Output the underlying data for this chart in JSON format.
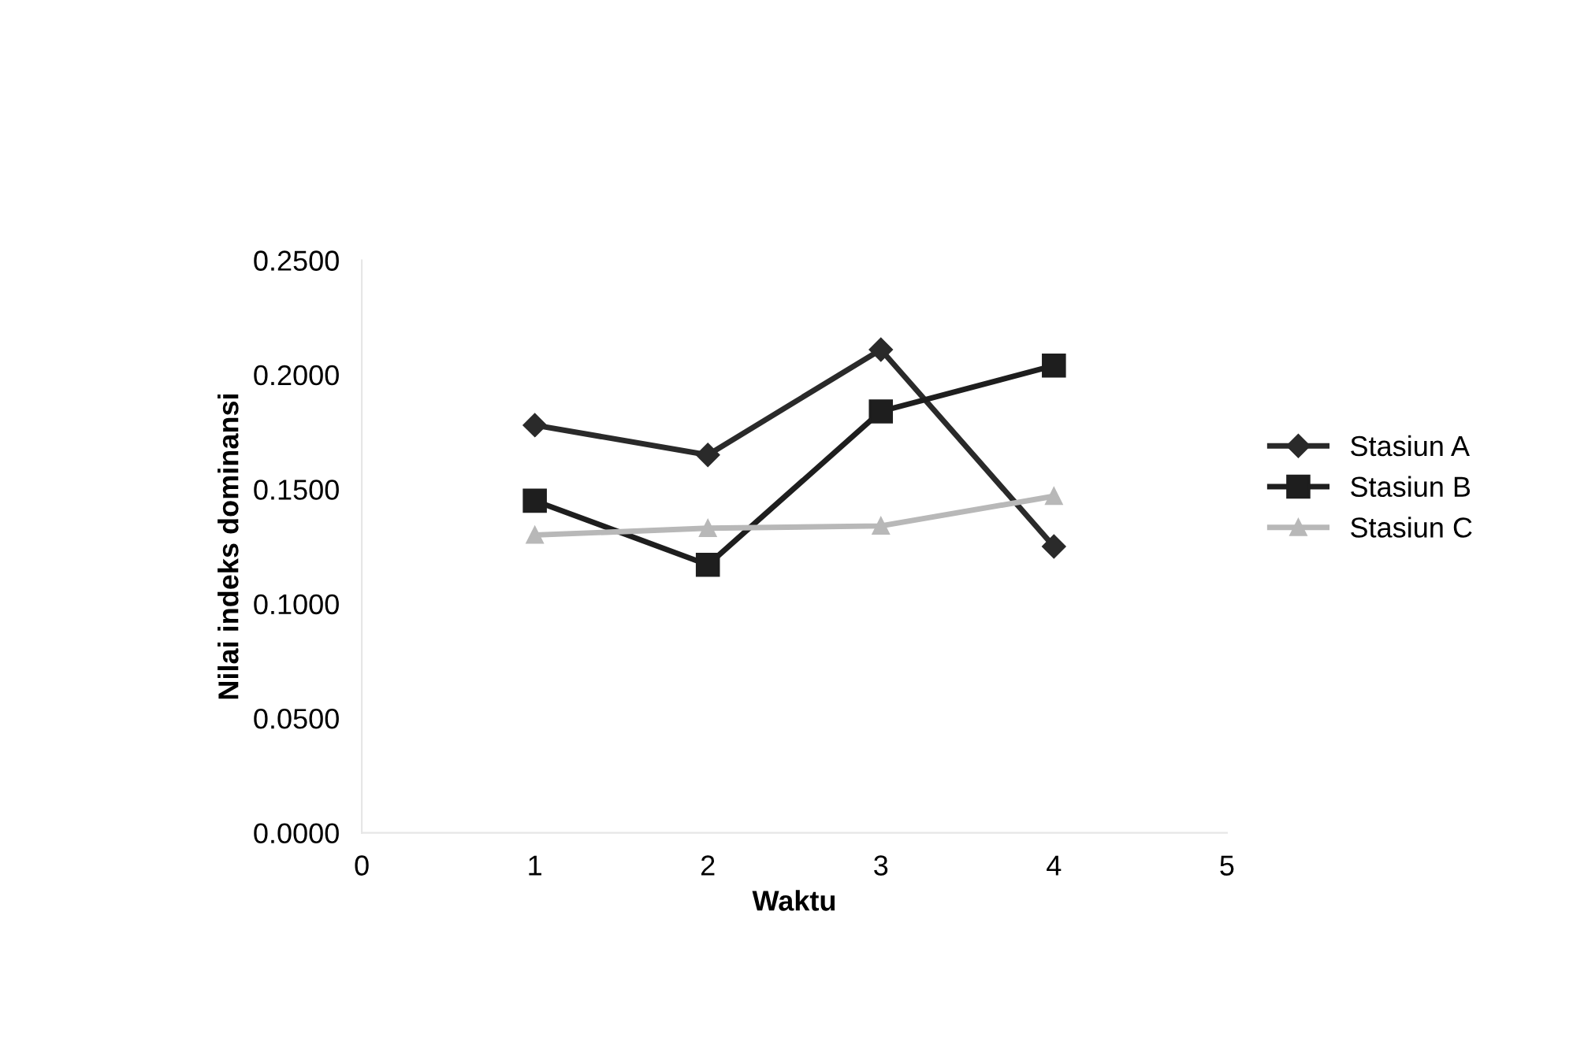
{
  "chart_data": {
    "type": "line",
    "xlabel": "Waktu",
    "ylabel": "Nilai indeks dominansi",
    "x": [
      1,
      2,
      3,
      4
    ],
    "series": [
      {
        "name": "Stasiun A",
        "color": "#2a2a2a",
        "marker": "diamond",
        "values": [
          0.178,
          0.165,
          0.211,
          0.125
        ]
      },
      {
        "name": "Stasiun B",
        "color": "#1e1e1e",
        "marker": "square",
        "values": [
          0.145,
          0.117,
          0.184,
          0.204
        ]
      },
      {
        "name": "Stasiun C",
        "color": "#b8b8b8",
        "marker": "triangle",
        "values": [
          0.13,
          0.133,
          0.134,
          0.147
        ]
      }
    ],
    "xlim": [
      0,
      5
    ],
    "xticks": [
      0,
      1,
      2,
      3,
      4,
      5
    ],
    "ylim": [
      0,
      0.25
    ],
    "yticks": [
      {
        "value": 0,
        "label": "0.0000"
      },
      {
        "value": 0.05,
        "label": "0.0500"
      },
      {
        "value": 0.1,
        "label": "0.1000"
      },
      {
        "value": 0.15,
        "label": "0.1500"
      },
      {
        "value": 0.2,
        "label": "0.2000"
      },
      {
        "value": 0.25,
        "label": "0.2500"
      }
    ],
    "legend": "right",
    "grid": false,
    "line_style": "solid"
  }
}
